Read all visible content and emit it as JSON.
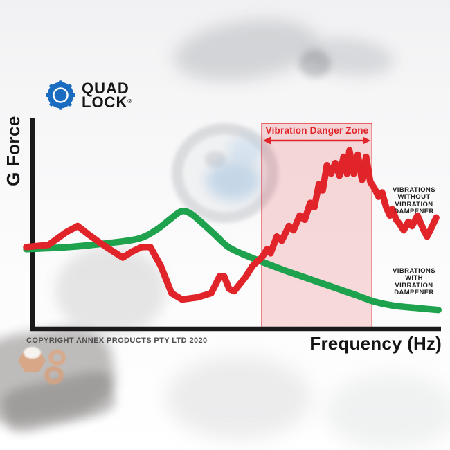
{
  "logo": {
    "line1": "QUAD",
    "line2": "LOCK",
    "registered_mark": "®",
    "brand_blue": "#1a6cc0"
  },
  "chart": {
    "y_axis_label": "G Force",
    "x_axis_label": "Frequency (Hz)",
    "danger_zone": {
      "label": "Vibration Danger Zone"
    },
    "annotations": {
      "without_dampener": [
        "VIBRATIONS",
        "WITHOUT",
        "VIBRATION",
        "DAMPENER"
      ],
      "with_dampener": [
        "VIBRATIONS",
        "WITH",
        "VIBRATION",
        "DAMPENER"
      ]
    }
  },
  "footer": {
    "copyright": "COPYRIGHT ANNEX PRODUCTS PTY LTD 2020"
  },
  "colors": {
    "red_line": "#e0242a",
    "green_line": "#1ea24d",
    "danger_fill_rgba": "rgba(224,36,42,0.16)",
    "danger_border": "#e0242a",
    "axis": "#1a1a1a"
  },
  "chart_data": {
    "type": "line",
    "title": "Vibration (G Force) vs Frequency with and without vibration dampener",
    "xlabel": "Frequency (Hz)",
    "ylabel": "G Force",
    "x_units": "relative frequency 0-100 (axis unlabeled)",
    "y_units": "relative G force 0-10 (axis unlabeled)",
    "grid": false,
    "legend_position": "right-annotations",
    "xlim": [
      0,
      100
    ],
    "ylim": [
      0,
      10
    ],
    "danger_zone_x": [
      56.4,
      82.8
    ],
    "danger_zone_label": "Vibration Danger Zone",
    "series": [
      {
        "name": "Vibrations without vibration dampener",
        "color": "#e0242a",
        "style": "jagged",
        "points": [
          [
            0,
            3.9
          ],
          [
            5.3,
            4.0
          ],
          [
            9.5,
            4.6
          ],
          [
            12.3,
            4.9
          ],
          [
            14.9,
            4.5
          ],
          [
            17.7,
            4.1
          ],
          [
            20.7,
            3.7
          ],
          [
            23.1,
            3.4
          ],
          [
            25.5,
            3.7
          ],
          [
            27.7,
            3.9
          ],
          [
            29.7,
            3.9
          ],
          [
            32.2,
            3.0
          ],
          [
            34.8,
            1.7
          ],
          [
            37.3,
            1.4
          ],
          [
            41.0,
            1.5
          ],
          [
            44.3,
            1.7
          ],
          [
            46.3,
            2.5
          ],
          [
            47.4,
            2.5
          ],
          [
            48.6,
            1.9
          ],
          [
            49.8,
            1.8
          ],
          [
            52.6,
            2.5
          ],
          [
            54.2,
            3.0
          ],
          [
            56.4,
            3.4
          ],
          [
            57.7,
            3.8
          ],
          [
            58.5,
            3.6
          ],
          [
            60.0,
            4.4
          ],
          [
            61.2,
            4.2
          ],
          [
            62.9,
            4.9
          ],
          [
            64.0,
            4.7
          ],
          [
            65.5,
            5.4
          ],
          [
            66.7,
            5.2
          ],
          [
            68.0,
            6.0
          ],
          [
            69.0,
            5.8
          ],
          [
            70.1,
            6.9
          ],
          [
            71.0,
            6.6
          ],
          [
            72.0,
            7.8
          ],
          [
            73.0,
            7.4
          ],
          [
            74.0,
            7.9
          ],
          [
            75.0,
            7.3
          ],
          [
            76.0,
            8.2
          ],
          [
            76.8,
            7.4
          ],
          [
            77.4,
            8.5
          ],
          [
            78.4,
            7.4
          ],
          [
            79.4,
            8.3
          ],
          [
            80.4,
            7.1
          ],
          [
            81.4,
            8.2
          ],
          [
            82.4,
            7.0
          ],
          [
            83.4,
            6.7
          ],
          [
            84.4,
            6.3
          ],
          [
            85.2,
            6.5
          ],
          [
            86.2,
            5.8
          ],
          [
            87.1,
            5.4
          ],
          [
            87.7,
            5.7
          ],
          [
            88.6,
            5.2
          ],
          [
            89.4,
            5.0
          ],
          [
            90.4,
            4.7
          ],
          [
            91.5,
            5.1
          ],
          [
            92.4,
            4.9
          ],
          [
            93.7,
            5.4
          ],
          [
            95.2,
            4.7
          ],
          [
            96.0,
            4.4
          ],
          [
            97.0,
            4.8
          ],
          [
            98.2,
            5.3
          ]
        ]
      },
      {
        "name": "Vibrations with vibration dampener",
        "color": "#1ea24d",
        "style": "smooth",
        "points": [
          [
            0,
            3.8
          ],
          [
            10.3,
            3.9
          ],
          [
            20.2,
            4.1
          ],
          [
            26.9,
            4.3
          ],
          [
            31.0,
            4.7
          ],
          [
            34.3,
            5.2
          ],
          [
            37.1,
            5.6
          ],
          [
            39.3,
            5.5
          ],
          [
            41.8,
            5.1
          ],
          [
            45.1,
            4.5
          ],
          [
            48.4,
            3.9
          ],
          [
            52.6,
            3.5
          ],
          [
            56.4,
            3.2
          ],
          [
            61.7,
            2.8
          ],
          [
            67.5,
            2.4
          ],
          [
            73.3,
            2.0
          ],
          [
            79.1,
            1.6
          ],
          [
            83.3,
            1.3
          ],
          [
            88.2,
            1.1
          ],
          [
            93.2,
            1.0
          ],
          [
            98.7,
            0.9
          ]
        ]
      }
    ]
  }
}
